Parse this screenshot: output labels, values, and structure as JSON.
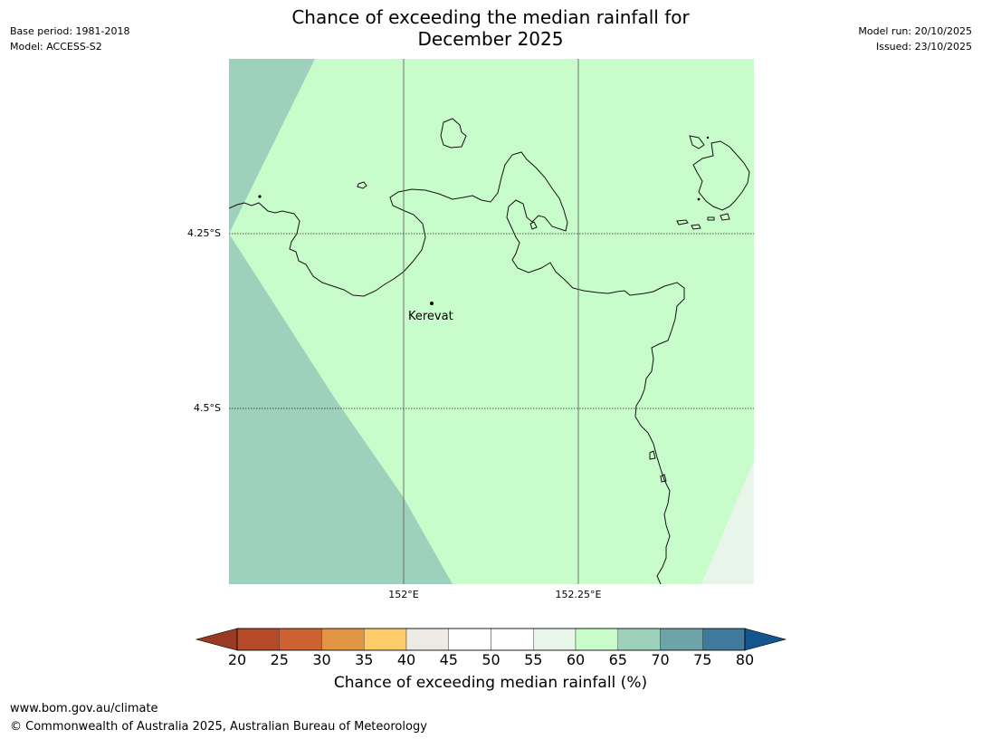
{
  "header": {
    "title_line1": "Chance of exceeding the median rainfall for",
    "title_line2": "December 2025",
    "base_period": "Base period: 1981-2018",
    "model": "Model: ACCESS-S2",
    "model_run": "Model run: 20/10/2025",
    "issued": "Issued: 23/10/2025"
  },
  "map": {
    "lat_labels": [
      "4.25°S",
      "4.5°S"
    ],
    "lon_labels": [
      "152°E",
      "152.25°E"
    ],
    "place": "Kerevat",
    "zone_colors": {
      "60-65": "#c9fccb",
      "65-70": "#9ed1bc",
      "55-60": "#e8f5e9"
    }
  },
  "colorbar": {
    "label": "Chance of exceeding median rainfall (%)",
    "ticks": [
      "20",
      "25",
      "30",
      "35",
      "40",
      "45",
      "50",
      "55",
      "60",
      "65",
      "70",
      "75",
      "80"
    ],
    "colors": [
      "#9b3a22",
      "#b44a27",
      "#cc6232",
      "#e19545",
      "#fecd69",
      "#ede9e4",
      "#ffffff",
      "#ffffff",
      "#e8f5e9",
      "#c9fccb",
      "#9ed1bc",
      "#6ea4a8",
      "#3f7a9c",
      "#14548f"
    ]
  },
  "footer": {
    "url": "www.bom.gov.au/climate",
    "copyright": "© Commonwealth of Australia 2025, Australian Bureau of Meteorology"
  }
}
